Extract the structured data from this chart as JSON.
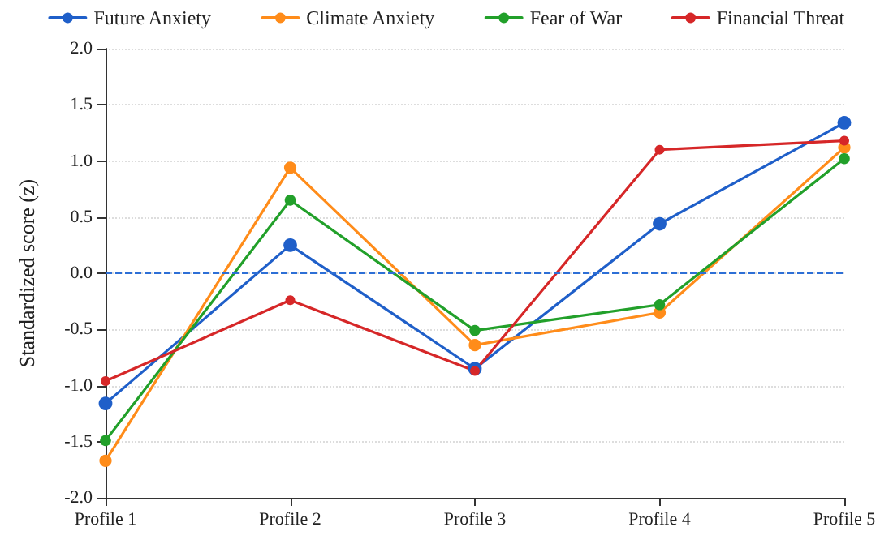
{
  "chart_data": {
    "type": "line",
    "ylabel": "Standardized score (z)",
    "categories": [
      "Profile 1",
      "Profile 2",
      "Profile 3",
      "Profile 4",
      "Profile 5"
    ],
    "series": [
      {
        "name": "Future Anxiety",
        "color": "#1f5fc9",
        "values": [
          -1.16,
          0.25,
          -0.85,
          0.44,
          1.34
        ]
      },
      {
        "name": "Climate Anxiety",
        "color": "#ff8c1a",
        "values": [
          -1.67,
          0.94,
          -0.64,
          -0.35,
          1.12
        ]
      },
      {
        "name": "Fear of War",
        "color": "#22a02a",
        "values": [
          -1.49,
          0.65,
          -0.51,
          -0.28,
          1.02
        ]
      },
      {
        "name": "Financial Threat",
        "color": "#d62728",
        "values": [
          -0.96,
          -0.24,
          -0.87,
          1.1,
          1.18
        ]
      }
    ],
    "ylim": [
      -2,
      2
    ],
    "yticks": [
      {
        "value": -2,
        "label": "-2.0"
      },
      {
        "value": -1.5,
        "label": "-1.5"
      },
      {
        "value": -1,
        "label": "-1.0"
      },
      {
        "value": -0.5,
        "label": "-0.5"
      },
      {
        "value": 0,
        "label": "0.0"
      },
      {
        "value": 0.5,
        "label": "0.5"
      },
      {
        "value": 1,
        "label": "1.0"
      },
      {
        "value": 1.5,
        "label": "1.5"
      },
      {
        "value": 2,
        "label": "2.0"
      }
    ],
    "ref_lines": [
      {
        "axis": "y",
        "value": 0,
        "color": "#2d6fd6",
        "line_style": "dashed"
      }
    ],
    "grid": "y",
    "legend": "top",
    "marker": "circle",
    "line_style": "solid"
  }
}
